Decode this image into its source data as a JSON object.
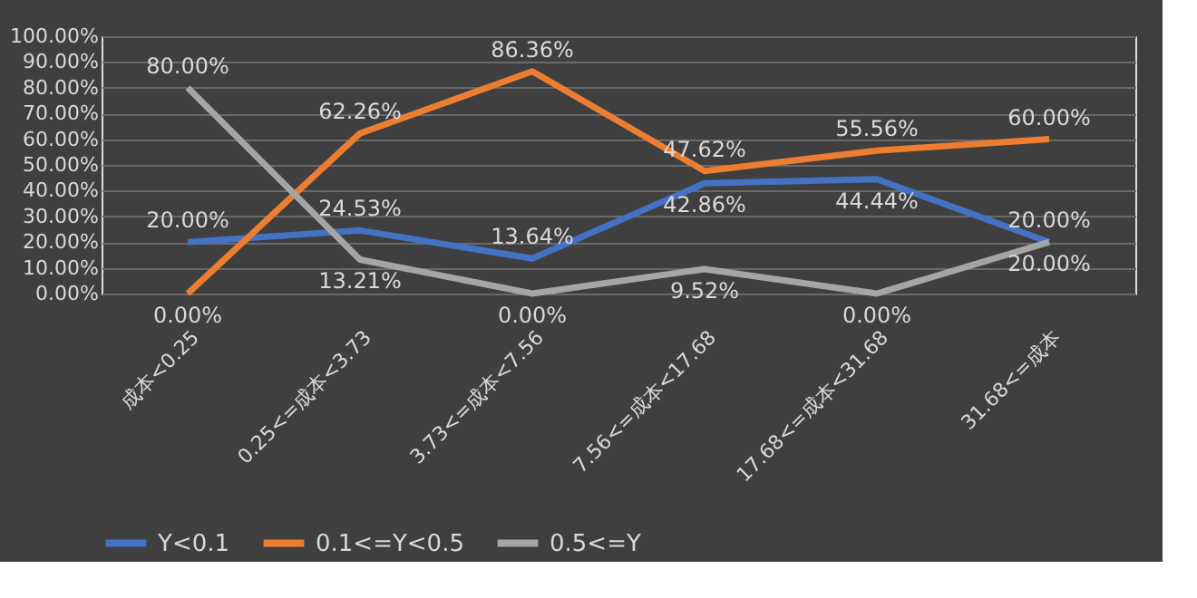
{
  "chart_data": {
    "type": "line",
    "categories": [
      "成本<0.25",
      "0.25<=成本<3.73",
      "3.73<=成本<7.56",
      "7.56<=成本<17.68",
      "17.68<=成本<31.68",
      "31.68<=成本"
    ],
    "series": [
      {
        "name": "Y<0.1",
        "color": "#4472c4",
        "values": [
          20.0,
          24.53,
          13.64,
          42.86,
          44.44,
          20.0
        ],
        "value_labels": [
          "20.00%",
          "24.53%",
          "13.64%",
          "42.86%",
          "44.44%",
          "20.00%"
        ]
      },
      {
        "name": "0.1<=Y<0.5",
        "color": "#ed7d31",
        "values": [
          0.0,
          62.26,
          86.36,
          47.62,
          55.56,
          60.0
        ],
        "value_labels": [
          "0.00%",
          "62.26%",
          "86.36%",
          "47.62%",
          "55.56%",
          "60.00%"
        ]
      },
      {
        "name": "0.5<=Y",
        "color": "#a5a5a5",
        "values": [
          80.0,
          13.21,
          0.0,
          9.52,
          0.0,
          20.0
        ],
        "value_labels": [
          "80.00%",
          "13.21%",
          "0.00%",
          "9.52%",
          "0.00%",
          "20.00%"
        ]
      }
    ],
    "ylim": [
      0,
      100
    ],
    "yticks": [
      {
        "value": 0,
        "label": "0.00%"
      },
      {
        "value": 10,
        "label": "10.00%"
      },
      {
        "value": 20,
        "label": "20.00%"
      },
      {
        "value": 30,
        "label": "30.00%"
      },
      {
        "value": 40,
        "label": "40.00%"
      },
      {
        "value": 50,
        "label": "50.00%"
      },
      {
        "value": 60,
        "label": "60.00%"
      },
      {
        "value": 70,
        "label": "70.00%"
      },
      {
        "value": 80,
        "label": "80.00%"
      },
      {
        "value": 90,
        "label": "90.00%"
      },
      {
        "value": 100,
        "label": "100.00%"
      }
    ],
    "grid": "y",
    "legend": "bottom",
    "marker": "none",
    "line_style": "solid"
  }
}
